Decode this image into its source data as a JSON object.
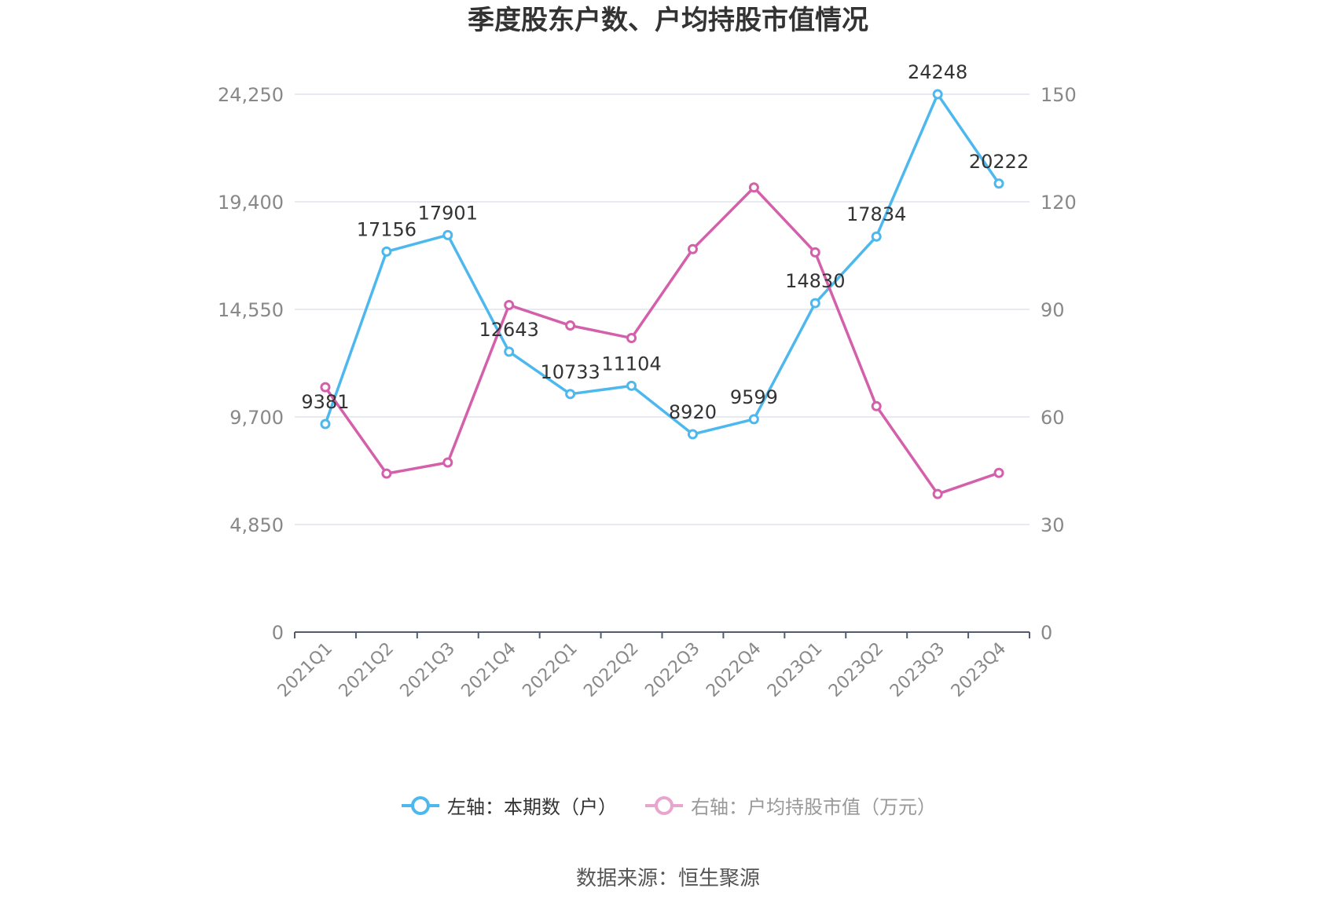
{
  "title": "季度股东户数、户均持股市值情况",
  "legend": {
    "left": "左轴：本期数（户）",
    "right": "右轴：户均持股市值（万元）"
  },
  "source": "数据来源：恒生聚源",
  "colors": {
    "left_series": "#4DB8EE",
    "right_series": "#D45FAA",
    "right_legend": "#E8A6CF",
    "grid": "#E0E3EE",
    "axis": "#555B6E"
  },
  "chart_data": {
    "type": "line",
    "categories": [
      "2021Q1",
      "2021Q2",
      "2021Q3",
      "2021Q4",
      "2022Q1",
      "2022Q2",
      "2022Q3",
      "2022Q4",
      "2023Q1",
      "2023Q2",
      "2023Q3",
      "2023Q4"
    ],
    "series": [
      {
        "name": "左轴：本期数（户）",
        "axis": "left",
        "values": [
          9381,
          17156,
          17901,
          12643,
          10733,
          11104,
          8920,
          9599,
          14830,
          17834,
          24248,
          20222
        ],
        "show_labels": true
      },
      {
        "name": "右轴：户均持股市值（万元）",
        "axis": "right",
        "values": [
          68.3,
          44.2,
          47.3,
          91.2,
          85.5,
          82.0,
          106.8,
          124.0,
          105.9,
          63.0,
          38.5,
          44.4
        ],
        "show_labels": false
      }
    ],
    "y_left": {
      "min": 0,
      "max": 24250,
      "ticks": [
        "0",
        "4,850",
        "9,700",
        "14,550",
        "19,400",
        "24,250"
      ]
    },
    "y_right": {
      "min": 0,
      "max": 150,
      "ticks": [
        "0",
        "30",
        "60",
        "90",
        "120",
        "150"
      ]
    },
    "grid": true,
    "legend_position": "bottom"
  }
}
